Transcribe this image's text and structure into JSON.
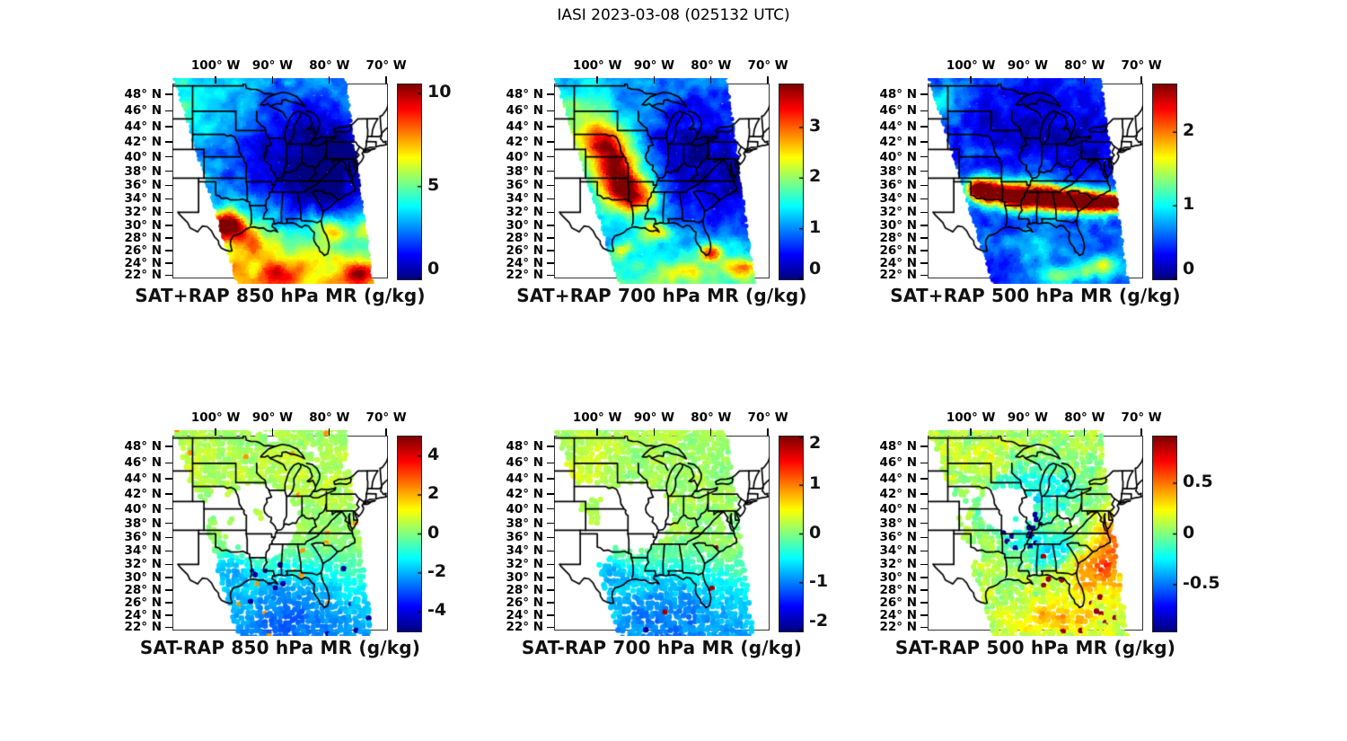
{
  "figure": {
    "title": "IASI 2023-03-08 (025132 UTC)",
    "instrument": "IASI",
    "date": "2023-03-08",
    "time_utc": "025132"
  },
  "axes": {
    "lon_tick_labels": [
      "100° W",
      "90° W",
      "80° W",
      "70° W"
    ],
    "lat_tick_labels": [
      "48° N",
      "46° N",
      "44° N",
      "42° N",
      "40° N",
      "38° N",
      "36° N",
      "34° N",
      "32° N",
      "30° N",
      "28° N",
      "26° N",
      "24° N",
      "22° N"
    ]
  },
  "panels": [
    {
      "id": "sat-plus-rap-850",
      "title": "SAT+RAP 850 hPa MR (g/kg)",
      "colorbar_tick_labels": [
        "10",
        "5",
        "0"
      ]
    },
    {
      "id": "sat-plus-rap-700",
      "title": "SAT+RAP 700 hPa MR (g/kg)",
      "colorbar_tick_labels": [
        "3",
        "2",
        "1",
        "0"
      ]
    },
    {
      "id": "sat-plus-rap-500",
      "title": "SAT+RAP 500 hPa MR (g/kg)",
      "colorbar_tick_labels": [
        "2",
        "1",
        "0"
      ]
    },
    {
      "id": "sat-minus-rap-850",
      "title": "SAT-RAP 850 hPa MR (g/kg)",
      "colorbar_tick_labels": [
        "4",
        "2",
        "0",
        "-2",
        "-4"
      ]
    },
    {
      "id": "sat-minus-rap-700",
      "title": "SAT-RAP 700 hPa MR (g/kg)",
      "colorbar_tick_labels": [
        "2",
        "1",
        "0",
        "-1",
        "-2"
      ]
    },
    {
      "id": "sat-minus-rap-500",
      "title": "SAT-RAP 500 hPa MR (g/kg)",
      "colorbar_tick_labels": [
        "0.5",
        "0",
        "-0.5"
      ]
    }
  ],
  "chart_data": {
    "type": "heatmap",
    "title": "IASI 2023-03-08 (025132 UTC)",
    "layout": "2 rows x 3 columns of geographic maps (eastern/central USA) with jet colorbars",
    "map_extent": {
      "lon_west": -107.6,
      "lon_east": -69.7,
      "lat_south": 21.5,
      "lat_north": 49.3
    },
    "lon_ticks_deg_w": [
      100,
      90,
      80,
      70
    ],
    "lat_ticks_deg_n": [
      48,
      46,
      44,
      42,
      40,
      38,
      36,
      34,
      32,
      30,
      28,
      26,
      24,
      22
    ],
    "colormap": "jet",
    "grid": false,
    "legend_position": "vertical colorbar right of each map",
    "panels": [
      {
        "title": "SAT+RAP 850 hPa MR (g/kg)",
        "row": "top",
        "quantity": "SAT+RAP retrieved mixing ratio",
        "level_hPa": 850,
        "units": "g/kg",
        "colorbar_ticks": [
          0,
          5,
          10
        ],
        "colorbar_range_est": [
          0,
          10.5
        ],
        "notable_features": "Deep-blue dry air (0-2 g/kg) over Midwest/Ohio Valley/Northeast; cyan 3-5 g/kg over northern plains; dark-red moist plume ~9-10 g/kg over eastern TX/OK toward AR; yellow-orange 6-10 g/kg band over Gulf coast, Florida and Gulf of Mexico"
      },
      {
        "title": "SAT+RAP 700 hPa MR (g/kg)",
        "row": "top",
        "quantity": "SAT+RAP retrieved mixing ratio",
        "level_hPa": 700,
        "units": "g/kg",
        "colorbar_ticks": [
          0,
          1,
          2,
          3
        ],
        "colorbar_range_est": [
          0,
          3.85
        ],
        "notable_features": "Dark-red maximum ~3.5-3.8 g/kg over KS/OK/MO, plume extending northwest; very dry (<0.5) over Great Lakes/Ohio Valley/Southeast; cyan-green 1.5-2 over northern plains; scattered yellow-orange patches over Gulf of Mexico"
      },
      {
        "title": "SAT+RAP 500 hPa MR (g/kg)",
        "row": "top",
        "quantity": "SAT+RAP retrieved mixing ratio",
        "level_hPa": 500,
        "units": "g/kg",
        "colorbar_ticks": [
          0,
          1,
          2
        ],
        "colorbar_range_est": [
          0,
          2.65
        ],
        "notable_features": "Dark-red/orange moist band ~2-2.6 g/kg along ~34-37N from OK/AR through TN to the Carolinas; dark blue <0.4 to the north; blue/cyan 0.3-1 over Gulf with scattered warm specks near the southern edge"
      },
      {
        "title": "SAT-RAP 850 hPa MR (g/kg)",
        "row": "bottom",
        "quantity": "SAT minus RAP mixing ratio difference",
        "level_hPa": 850,
        "units": "g/kg",
        "colorbar_ticks": [
          -4,
          -2,
          0,
          2,
          4
        ],
        "colorbar_range_est": [
          -5,
          5
        ],
        "notable_features": "Scattered footprints: near-zero/green (0 to +1) over upper Midwest and Northeast; negative cyan-blue (-1 to -3) over Gulf of Mexico and Gulf coast with sporadic dark-navy dots near -4.5; sparse coverage over central plains"
      },
      {
        "title": "SAT-RAP 700 hPa MR (g/kg)",
        "row": "bottom",
        "quantity": "SAT minus RAP mixing ratio difference",
        "level_hPa": 700,
        "units": "g/kg",
        "colorbar_ticks": [
          -2,
          -1,
          0,
          1,
          2
        ],
        "colorbar_range_est": [
          -2,
          2
        ],
        "notable_features": "Mostly green/cyan near-zero differences; weak negative (-0.3 to -1) cyan-blue over Gulf of Mexico and Florida; occasional red (+1.5 to 2) and navy (-2) specks; data gaps over MO/KS"
      },
      {
        "title": "SAT-RAP 500 hPa MR (g/kg)",
        "row": "bottom",
        "quantity": "SAT minus RAP mixing ratio difference",
        "level_hPa": 500,
        "units": "g/kg",
        "colorbar_ticks": [
          -0.5,
          0,
          0.5
        ],
        "colorbar_range_est": [
          -0.96,
          0.96
        ],
        "notable_features": "Green near-zero field; light-blue negative patch over WI/Lake Michigan; cluster of dark-navy dots (~-0.9) over MO/IA/IL; dark blue over TN/KY; red/dark-red streaks (+0.6 to +0.9) off the Southeast coast and over the southern Gulf"
      }
    ]
  }
}
